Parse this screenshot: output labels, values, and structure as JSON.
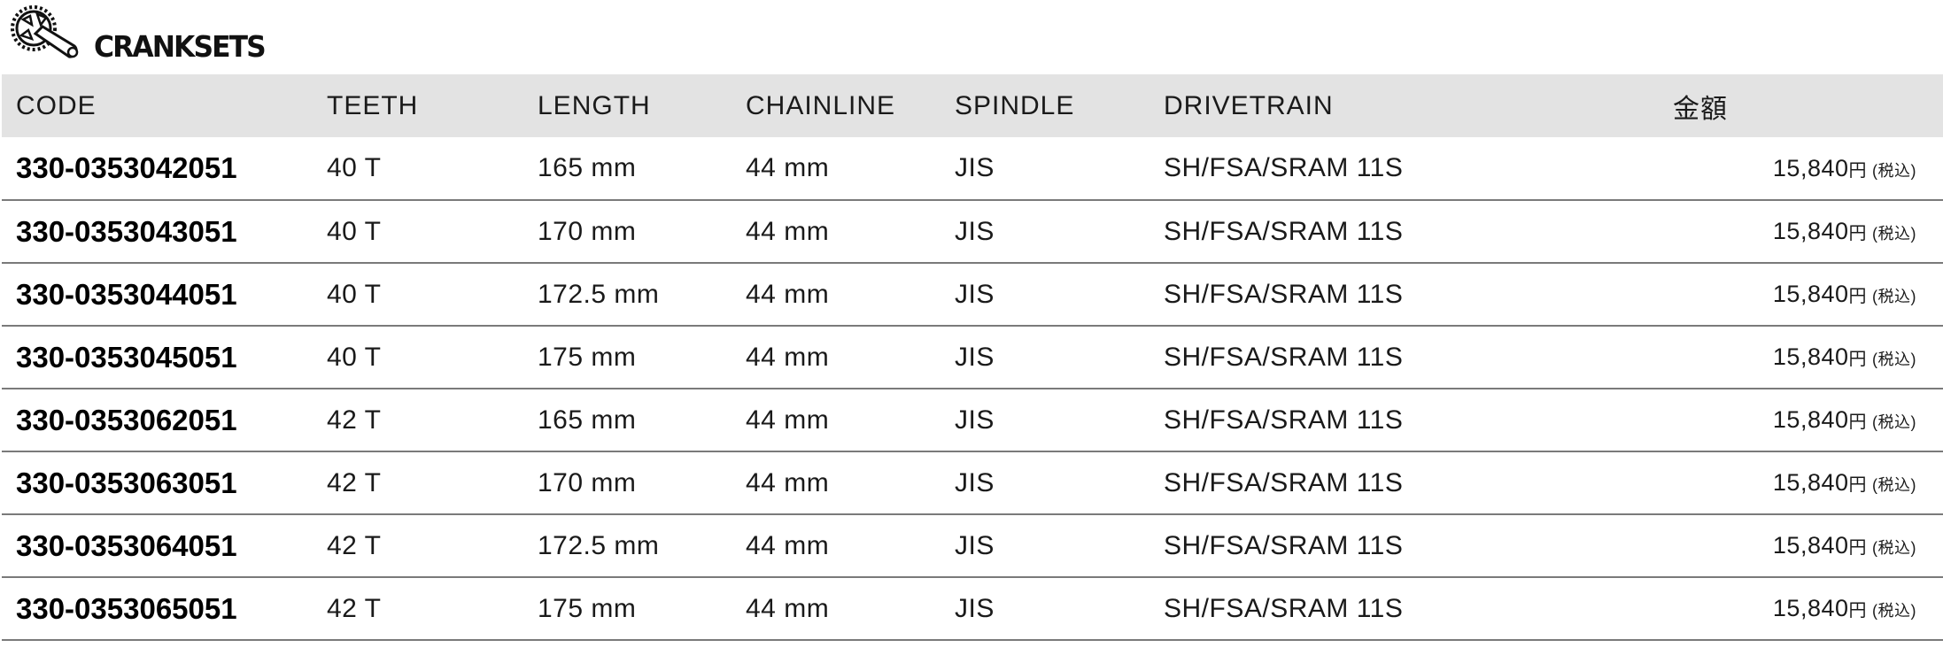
{
  "title": "CRANKSETS",
  "title_icon": "crankset-icon",
  "table": {
    "headers": [
      "CODE",
      "TEETH",
      "LENGTH",
      "CHAINLINE",
      "SPINDLE",
      "DRIVETRAIN",
      "金額"
    ],
    "rows": [
      {
        "code": "330-0353042051",
        "teeth": "40 T",
        "length": "165 mm",
        "chainline": "44 mm",
        "spindle": "JIS",
        "drivetrain": "SH/FSA/SRAM 11S",
        "price": "15,840",
        "yen": "円",
        "tax": "(税込)"
      },
      {
        "code": "330-0353043051",
        "teeth": "40 T",
        "length": "170 mm",
        "chainline": "44 mm",
        "spindle": "JIS",
        "drivetrain": "SH/FSA/SRAM 11S",
        "price": "15,840",
        "yen": "円",
        "tax": "(税込)"
      },
      {
        "code": "330-0353044051",
        "teeth": "40 T",
        "length": "172.5 mm",
        "chainline": "44 mm",
        "spindle": "JIS",
        "drivetrain": "SH/FSA/SRAM 11S",
        "price": "15,840",
        "yen": "円",
        "tax": "(税込)"
      },
      {
        "code": "330-0353045051",
        "teeth": "40 T",
        "length": "175 mm",
        "chainline": "44 mm",
        "spindle": "JIS",
        "drivetrain": "SH/FSA/SRAM 11S",
        "price": "15,840",
        "yen": "円",
        "tax": "(税込)"
      },
      {
        "code": "330-0353062051",
        "teeth": "42 T",
        "length": "165 mm",
        "chainline": "44 mm",
        "spindle": "JIS",
        "drivetrain": "SH/FSA/SRAM 11S",
        "price": "15,840",
        "yen": "円",
        "tax": "(税込)"
      },
      {
        "code": "330-0353063051",
        "teeth": "42 T",
        "length": "170 mm",
        "chainline": "44 mm",
        "spindle": "JIS",
        "drivetrain": "SH/FSA/SRAM 11S",
        "price": "15,840",
        "yen": "円",
        "tax": "(税込)"
      },
      {
        "code": "330-0353064051",
        "teeth": "42 T",
        "length": "172.5 mm",
        "chainline": "44 mm",
        "spindle": "JIS",
        "drivetrain": "SH/FSA/SRAM 11S",
        "price": "15,840",
        "yen": "円",
        "tax": "(税込)"
      },
      {
        "code": "330-0353065051",
        "teeth": "42 T",
        "length": "175 mm",
        "chainline": "44 mm",
        "spindle": "JIS",
        "drivetrain": "SH/FSA/SRAM 11S",
        "price": "15,840",
        "yen": "円",
        "tax": "(税込)"
      }
    ]
  }
}
